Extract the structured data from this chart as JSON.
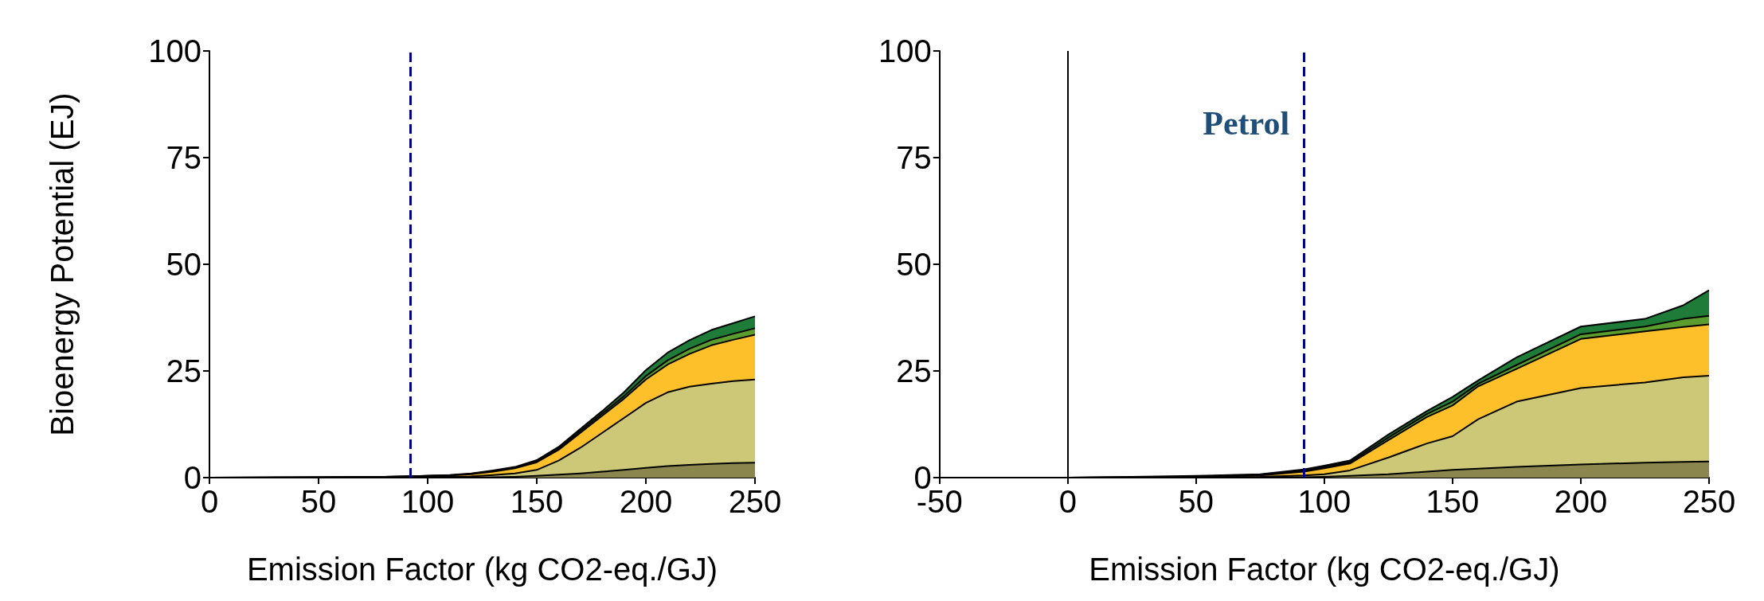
{
  "chart_data": [
    {
      "type": "area",
      "stacked": true,
      "ylabel": "Bioenergy Potential (EJ)",
      "xlabel": "Emission Factor (kg CO2-eq./GJ)",
      "x": [
        0,
        50,
        80,
        100,
        110,
        120,
        130,
        140,
        150,
        160,
        170,
        180,
        190,
        200,
        210,
        220,
        230,
        240,
        250
      ],
      "series": [
        {
          "color": "#8b864e",
          "values": [
            0,
            0,
            0,
            0,
            0,
            0,
            0.1,
            0.2,
            0.4,
            0.7,
            1.0,
            1.4,
            1.8,
            2.3,
            2.7,
            3.0,
            3.2,
            3.4,
            3.5
          ]
        },
        {
          "color": "#cdc878",
          "values": [
            0,
            0,
            0.1,
            0.2,
            0.2,
            0.3,
            0.5,
            0.8,
            1.4,
            3.3,
            6.0,
            9.1,
            12.2,
            15.2,
            17.3,
            18.3,
            18.8,
            19.2,
            19.5
          ]
        },
        {
          "color": "#fdc02a",
          "values": [
            0,
            0.1,
            0.1,
            0.2,
            0.3,
            0.5,
            0.8,
            1.2,
            1.8,
            2.5,
            3.5,
            4.0,
            4.5,
            5.5,
            6.5,
            7.7,
            9.0,
            9.7,
            10.5
          ]
        },
        {
          "color": "#5b9c2e",
          "values": [
            0,
            0,
            0,
            0,
            0,
            0.1,
            0.1,
            0.1,
            0.2,
            0.3,
            0.4,
            0.5,
            0.6,
            0.8,
            1.0,
            1.2,
            1.3,
            1.4,
            1.5
          ]
        },
        {
          "color": "#1e7b38",
          "values": [
            0,
            0,
            0,
            0,
            0.1,
            0.1,
            0.2,
            0.2,
            0.3,
            0.4,
            0.5,
            0.6,
            0.9,
            1.4,
            1.8,
            2.0,
            2.3,
            2.5,
            2.8
          ]
        }
      ],
      "xlim": [
        0,
        250
      ],
      "xticks": [
        0,
        50,
        100,
        150,
        200,
        250
      ],
      "ylim": [
        0,
        100
      ],
      "yticks": [
        0,
        25,
        50,
        75,
        100
      ],
      "ref_lines": [
        {
          "axis": "x",
          "value": 92,
          "color": "#00008b",
          "line_style": "dashed"
        }
      ],
      "grid": false,
      "marker": "none"
    },
    {
      "type": "area",
      "stacked": true,
      "xlabel": "Emission Factor (kg CO2-eq./GJ)",
      "x": [
        -50,
        0,
        25,
        50,
        75,
        92,
        100,
        110,
        125,
        140,
        150,
        160,
        175,
        200,
        225,
        240,
        250
      ],
      "series": [
        {
          "color": "#8b864e",
          "values": [
            0,
            0,
            0,
            0,
            0,
            0.1,
            0.2,
            0.4,
            0.8,
            1.4,
            1.8,
            2.1,
            2.5,
            3.1,
            3.5,
            3.7,
            3.8
          ]
        },
        {
          "color": "#cdc878",
          "values": [
            0,
            0,
            0,
            0.1,
            0.2,
            0.4,
            0.6,
            1.3,
            3.9,
            6.6,
            7.9,
            11.6,
            15.3,
            17.9,
            18.8,
            19.8,
            20.1
          ]
        },
        {
          "color": "#fdc02a",
          "values": [
            0,
            0,
            0.1,
            0.1,
            0.3,
            0.9,
            1.4,
            1.6,
            4.1,
            6.2,
            7.2,
            7.7,
            7.7,
            11.5,
            12.0,
            11.8,
            12.0
          ]
        },
        {
          "color": "#5b9c2e",
          "values": [
            0,
            0,
            0,
            0,
            0.1,
            0.2,
            0.3,
            0.3,
            0.6,
            0.7,
            0.9,
            0.6,
            0.9,
            1.1,
            1.1,
            1.9,
            2.0
          ]
        },
        {
          "color": "#1e7b38",
          "values": [
            0,
            0,
            0.1,
            0.2,
            0.2,
            0.3,
            0.3,
            0.4,
            0.7,
            0.7,
            1.1,
            0.8,
            1.8,
            1.8,
            1.8,
            3.2,
            6.0
          ]
        }
      ],
      "xlim": [
        -50,
        250
      ],
      "xticks": [
        -50,
        0,
        50,
        100,
        150,
        200,
        250
      ],
      "ylim": [
        0,
        100
      ],
      "yticks": [
        0,
        25,
        50,
        75,
        100
      ],
      "ref_lines": [
        {
          "axis": "x",
          "value": 0,
          "color": "#000000",
          "line_style": "solid"
        },
        {
          "axis": "x",
          "value": 92,
          "color": "#00008b",
          "line_style": "dashed",
          "label": "Petrol"
        }
      ],
      "grid": false,
      "marker": "none"
    }
  ]
}
